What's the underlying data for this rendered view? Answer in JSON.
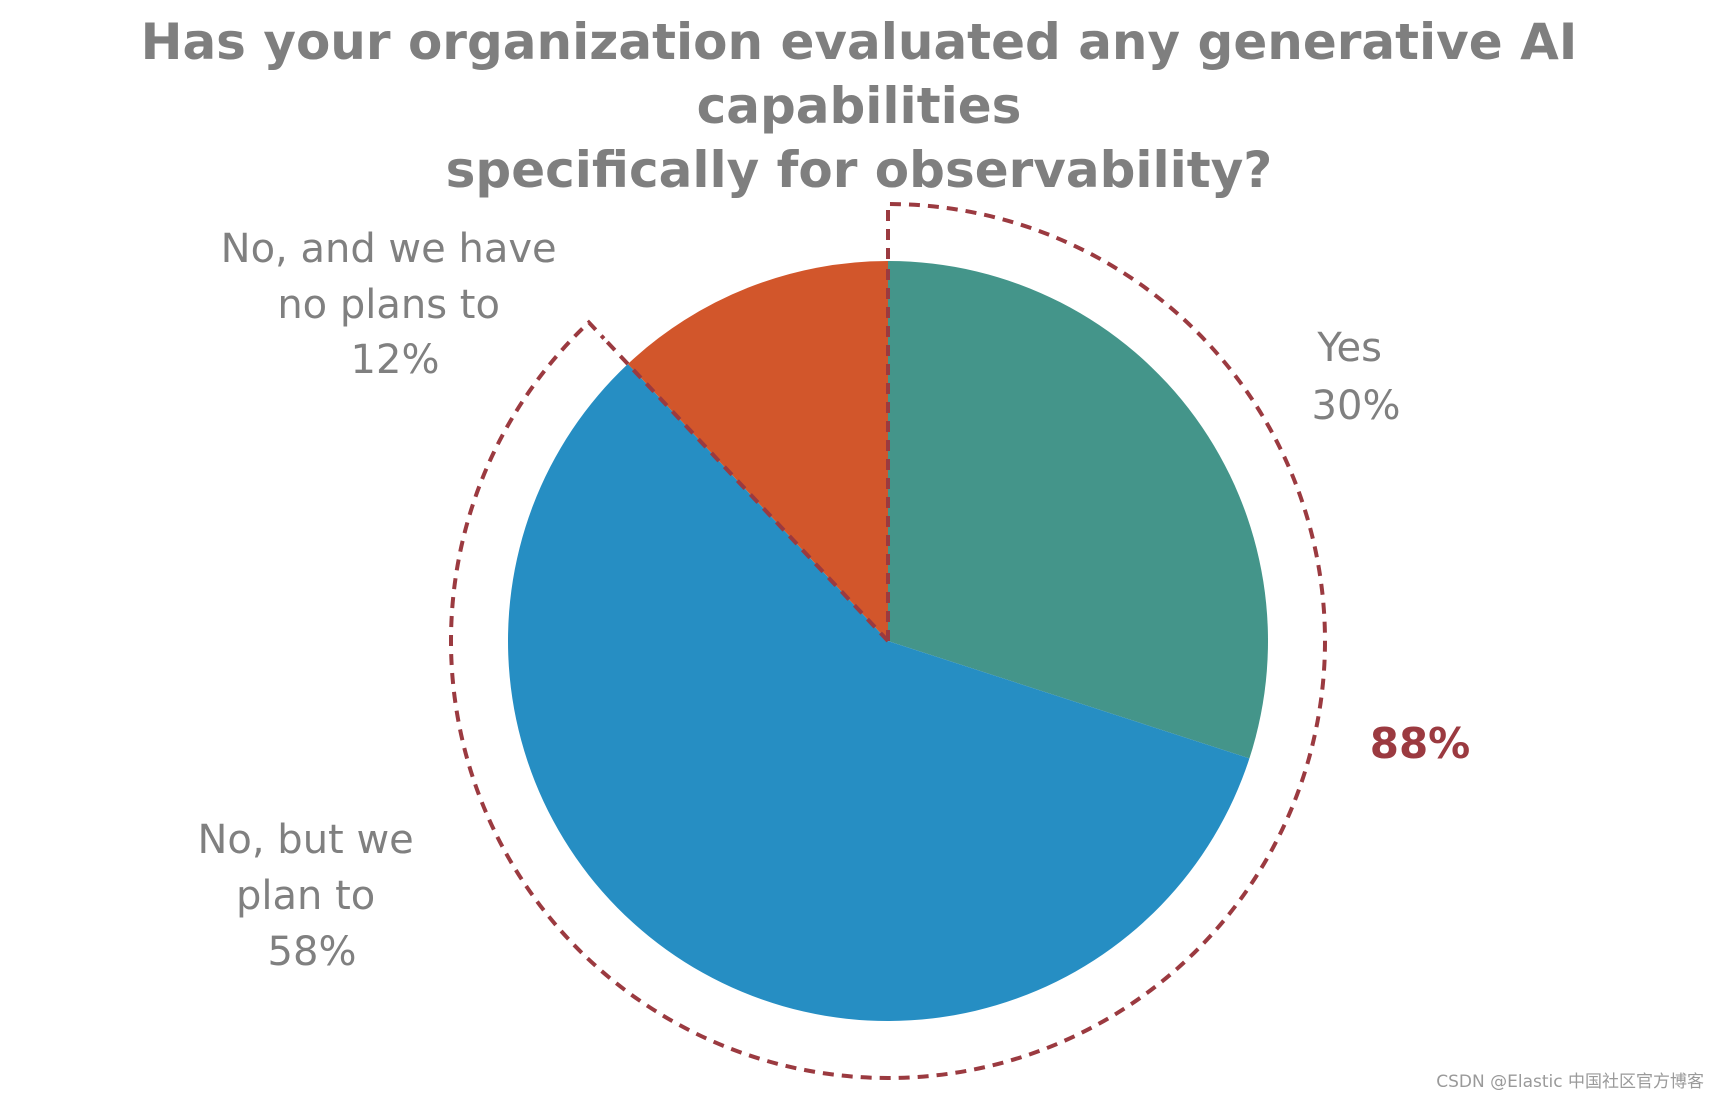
{
  "chart_data": {
    "type": "pie",
    "title_lines": [
      "Has your organization evaluated any generative AI capabilities",
      "specifically for observability?"
    ],
    "slices": [
      {
        "label_lines": [
          "Yes"
        ],
        "value": 30,
        "value_label": "30%",
        "color": "#44958a"
      },
      {
        "label_lines": [
          "No, but we",
          "plan to"
        ],
        "value": 58,
        "value_label": "58%",
        "color": "#268ec3"
      },
      {
        "label_lines": [
          "No, and we have",
          "no plans to"
        ],
        "value": 12,
        "value_label": "12%",
        "color": "#d2562b"
      }
    ],
    "callout": {
      "text": "88%",
      "covers": [
        "Yes",
        "No, but we plan to"
      ],
      "color": "#9b3a40"
    }
  },
  "watermark": "CSDN @Elastic 中国社区官方博客"
}
